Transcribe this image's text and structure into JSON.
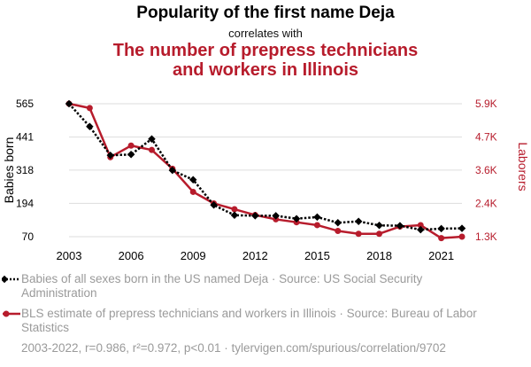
{
  "title": "Popularity of the first name Deja",
  "subtitle": "correlates with",
  "title2": "The number of prepress technicians and workers in Illinois",
  "title2_lines": [
    "The number of prepress technicians",
    "and workers in Illinois"
  ],
  "colors": {
    "series1": "#000000",
    "series2": "#b71c2c",
    "grid": "#dddddd"
  },
  "legend": [
    {
      "text": "Babies of all sexes born in the US named Deja · Source: US Social Security Administration",
      "color": "#000000",
      "style": "dotted-diamond"
    },
    {
      "text": "BLS estimate of prepress technicians and workers in Illinois · Source: Bureau of Labor Statistics",
      "color": "#b71c2c",
      "style": "solid-circle"
    }
  ],
  "footer": "2003-2022, r=0.986, r²=0.972, p<0.01 · tylervigen.com/spurious/correlation/9702",
  "chart_data": {
    "type": "line",
    "x": [
      2003,
      2004,
      2005,
      2006,
      2007,
      2008,
      2009,
      2010,
      2011,
      2012,
      2013,
      2014,
      2015,
      2016,
      2017,
      2018,
      2019,
      2020,
      2021,
      2022
    ],
    "xlabel": "",
    "xticks": [
      "2003",
      "2006",
      "2009",
      "2012",
      "2015",
      "2018",
      "2021"
    ],
    "xlim": [
      2003,
      2022
    ],
    "ylabel_left": "Babies born",
    "ylabel_right": "Laborers",
    "yticks_left": [
      "565",
      "441",
      "318",
      "194",
      "70"
    ],
    "yticks_left_values": [
      565,
      441,
      318,
      194,
      70
    ],
    "yticks_right": [
      "5.9K",
      "4.7K",
      "3.6K",
      "2.4K",
      "1.3K"
    ],
    "yticks_right_values": [
      5900,
      4750,
      3600,
      2450,
      1300
    ],
    "ylim_left": [
      70,
      565
    ],
    "ylim_right": [
      1300,
      5900
    ],
    "grid": true,
    "series": [
      {
        "name": "Babies of all sexes born in the US named Deja",
        "axis": "left",
        "color": "#000000",
        "style": "dotted",
        "marker": "diamond",
        "values": [
          565,
          480,
          373,
          376,
          434,
          317,
          282,
          188,
          150,
          148,
          148,
          137,
          143,
          122,
          127,
          112,
          111,
          96,
          100,
          101
        ]
      },
      {
        "name": "BLS estimate of prepress technicians and workers in Illinois",
        "axis": "right",
        "color": "#b71c2c",
        "style": "solid",
        "marker": "circle",
        "values": [
          5900,
          5750,
          4050,
          4450,
          4300,
          3650,
          2850,
          2450,
          2250,
          2050,
          1900,
          1800,
          1700,
          1500,
          1400,
          1400,
          1650,
          1700,
          1250,
          1300
        ]
      }
    ]
  }
}
